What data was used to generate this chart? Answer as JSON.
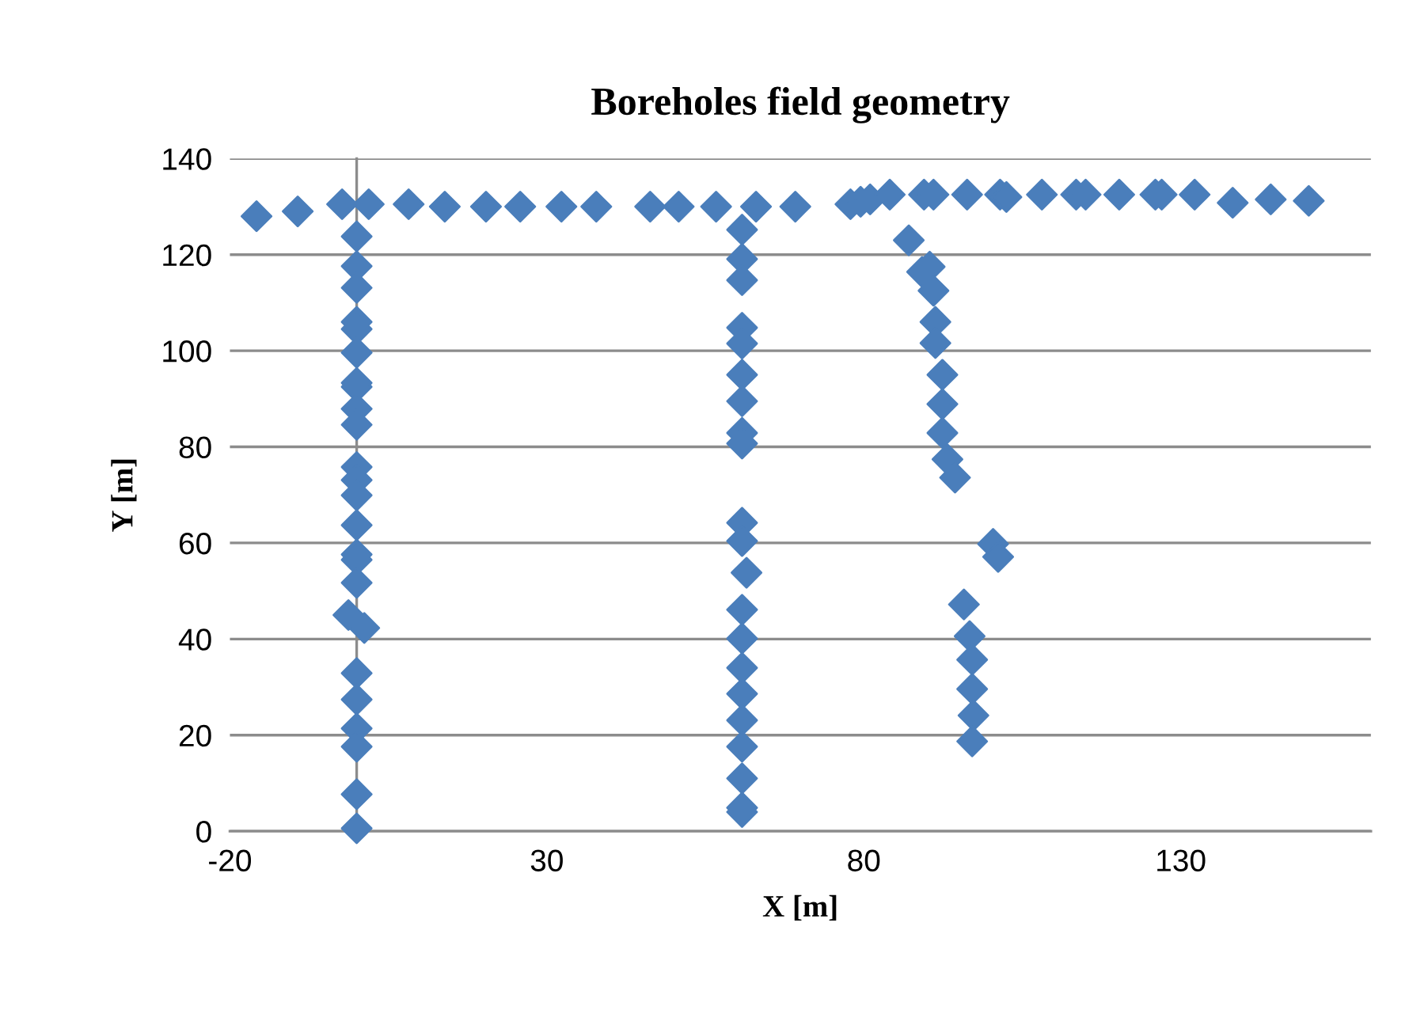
{
  "chart_data": {
    "type": "scatter",
    "title": "Boreholes field geometry",
    "xlabel": "X [m]",
    "ylabel": "Y [m]",
    "x": [
      -15.8,
      -9.3,
      -2.3,
      1.9,
      8.2,
      13.9,
      20.4,
      25.8,
      32.3,
      37.8,
      46.3,
      50.8,
      56.7,
      63.0,
      69.2,
      77.9,
      79.5,
      81.0,
      84.1,
      89.5,
      91.0,
      96.3,
      101.5,
      102.5,
      108.1,
      113.5,
      115.0,
      120.3,
      126.0,
      127.0,
      132.2,
      138.2,
      144.2,
      150.2,
      0.0,
      0.0,
      0.0,
      0.0,
      0.0,
      0.0,
      0.0,
      0.0,
      0.0,
      0.0,
      0.0,
      0.0,
      0.0,
      0.0,
      0.0,
      0.0,
      0.0,
      -1.3,
      1.2,
      0.0,
      0.0,
      0.0,
      0.0,
      0.0,
      0.0,
      60.8,
      60.8,
      60.8,
      60.8,
      60.8,
      60.8,
      60.8,
      60.8,
      60.8,
      60.8,
      60.8,
      61.5,
      60.8,
      60.8,
      60.8,
      60.8,
      60.8,
      60.8,
      60.8,
      60.8,
      60.8,
      87.1,
      90.4,
      89.2,
      91.0,
      91.3,
      91.3,
      92.4,
      92.4,
      92.4,
      93.2,
      94.4,
      100.4,
      101.2,
      95.8,
      96.7,
      97.1,
      97.1,
      97.3,
      97.1
    ],
    "values": [
      128,
      129,
      130.5,
      130.5,
      130.5,
      130,
      130,
      130,
      130,
      130,
      130,
      130,
      130,
      130,
      130,
      130.5,
      131,
      131.5,
      132.5,
      132.5,
      132.5,
      132.5,
      132.5,
      132,
      132.5,
      132.5,
      132.5,
      132.5,
      132.5,
      132.5,
      132.5,
      130.8,
      131.5,
      131.2,
      123.8,
      117.6,
      113.1,
      106.0,
      104.5,
      99.6,
      93.3,
      92.5,
      87.9,
      84.6,
      75.8,
      73.1,
      69.9,
      63.7,
      57.6,
      56.5,
      51.7,
      45.0,
      42.3,
      32.9,
      27.4,
      21.4,
      17.6,
      7.7,
      0.6,
      125.2,
      119.1,
      114.7,
      104.8,
      101.5,
      95.0,
      89.5,
      82.9,
      80.7,
      64.2,
      60.4,
      53.8,
      46.1,
      40.1,
      34.0,
      28.6,
      23.1,
      17.6,
      11.0,
      4.9,
      4.0,
      123.0,
      117.5,
      116.4,
      112.5,
      106.0,
      101.6,
      95.0,
      88.9,
      82.9,
      77.4,
      73.6,
      59.8,
      57.1,
      47.2,
      40.6,
      35.7,
      29.6,
      24.1,
      18.7
    ],
    "color": "#4a7ebb",
    "marker": "diamond",
    "grid": "y",
    "xlim": [
      -20,
      160
    ],
    "xticks": [
      -20,
      30,
      80,
      130
    ],
    "ylim": [
      0,
      140
    ],
    "yticks": [
      0,
      20,
      40,
      60,
      80,
      100,
      120,
      140
    ]
  }
}
